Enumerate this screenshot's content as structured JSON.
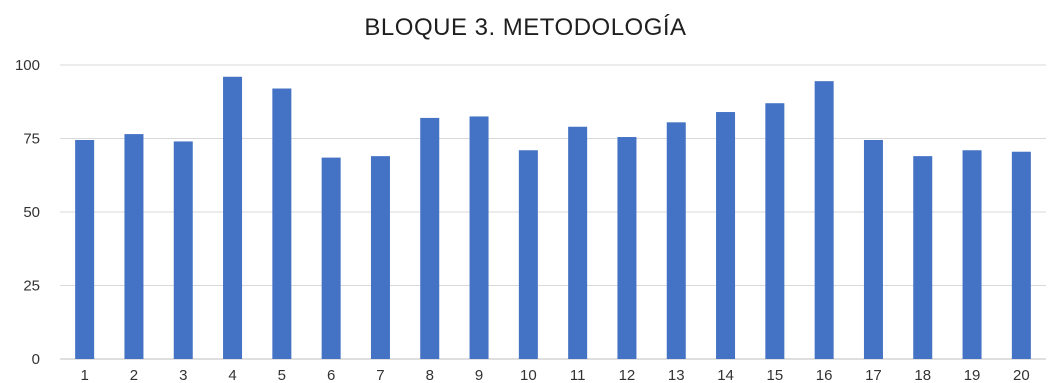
{
  "chart_data": {
    "type": "bar",
    "title": "BLOQUE 3. METODOLOGÍA",
    "xlabel": "",
    "ylabel": "",
    "categories": [
      "1",
      "2",
      "3",
      "4",
      "5",
      "6",
      "7",
      "8",
      "9",
      "10",
      "11",
      "12",
      "13",
      "14",
      "15",
      "16",
      "17",
      "18",
      "19",
      "20"
    ],
    "values": [
      74.5,
      76.5,
      74,
      96,
      92,
      68.5,
      69,
      82,
      82.5,
      71,
      79,
      75.5,
      80.5,
      84,
      87,
      94.5,
      74.5,
      69,
      71,
      70.5
    ],
    "ylim": [
      0,
      100
    ],
    "yticks": [
      "0",
      "25",
      "50",
      "75",
      "100"
    ],
    "grid": true,
    "legend": "none",
    "bar_color": "#4472c4"
  }
}
